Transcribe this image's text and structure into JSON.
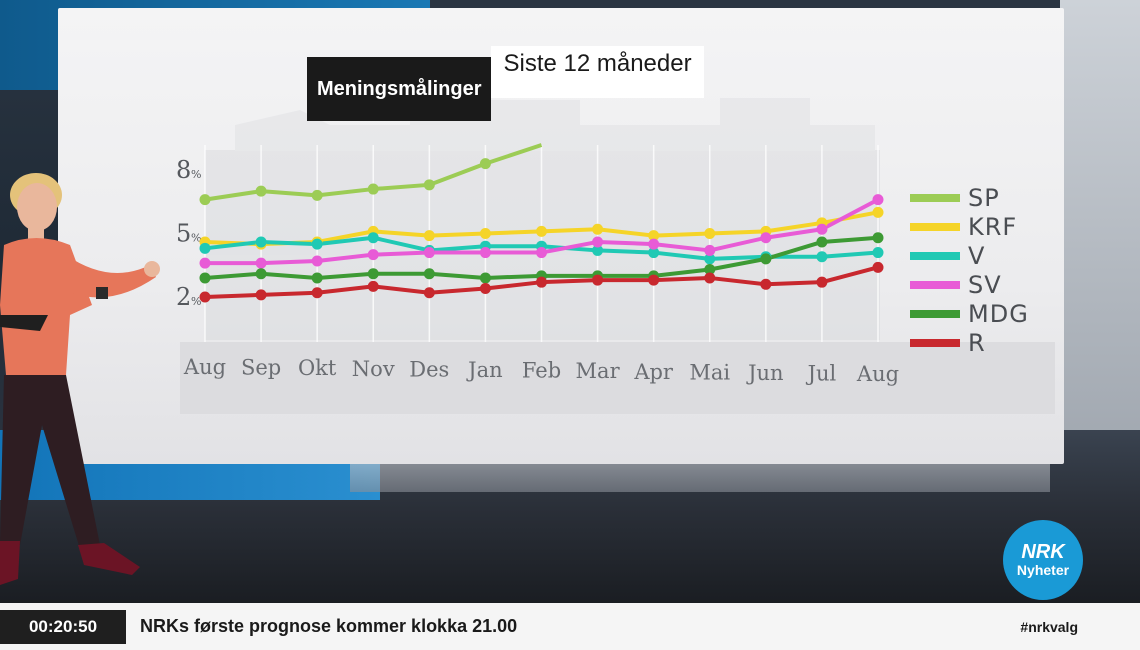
{
  "title": {
    "main": "Meningsmålinger",
    "sub": "Siste 12 måneder"
  },
  "chart_data": {
    "type": "line",
    "categories": [
      "Aug",
      "Sep",
      "Okt",
      "Nov",
      "Des",
      "Jan",
      "Feb",
      "Mar",
      "Apr",
      "Mai",
      "Jun",
      "Jul",
      "Aug"
    ],
    "y_ticks": [
      {
        "value": 8,
        "label": "8",
        "unit": "%"
      },
      {
        "value": 5,
        "label": "5",
        "unit": "%"
      },
      {
        "value": 2,
        "label": "2",
        "unit": "%"
      }
    ],
    "ylim": [
      1.5,
      8.5
    ],
    "series": [
      {
        "name": "SP",
        "color": "#9ccc55",
        "values": [
          6.6,
          7.0,
          6.8,
          7.1,
          7.3,
          8.3,
          10.0,
          null,
          null,
          null,
          null,
          null,
          null
        ]
      },
      {
        "name": "KRF",
        "color": "#f5d428",
        "values": [
          4.6,
          4.5,
          4.6,
          5.1,
          4.9,
          5.0,
          5.1,
          5.2,
          4.9,
          5.0,
          5.1,
          5.5,
          6.0
        ]
      },
      {
        "name": "V",
        "color": "#20c9b4",
        "values": [
          4.3,
          4.6,
          4.5,
          4.8,
          4.2,
          4.4,
          4.4,
          4.2,
          4.1,
          3.8,
          3.9,
          3.9,
          4.1
        ]
      },
      {
        "name": "SV",
        "color": "#e85bd6",
        "values": [
          3.6,
          3.6,
          3.7,
          4.0,
          4.1,
          4.1,
          4.1,
          4.6,
          4.5,
          4.2,
          4.8,
          5.2,
          6.6
        ]
      },
      {
        "name": "MDG",
        "color": "#3d9a34",
        "values": [
          2.9,
          3.1,
          2.9,
          3.1,
          3.1,
          2.9,
          3.0,
          3.0,
          3.0,
          3.3,
          3.8,
          4.6,
          4.8
        ]
      },
      {
        "name": "R",
        "color": "#c8282e",
        "values": [
          2.0,
          2.1,
          2.2,
          2.5,
          2.2,
          2.4,
          2.7,
          2.8,
          2.8,
          2.9,
          2.6,
          2.7,
          3.4
        ]
      }
    ],
    "legend_placement": "right"
  },
  "lower_third": {
    "clock": "00:20:50",
    "ticker": "NRKs første prognose kommer klokka 21.00",
    "hashtag": "#nrkvalg"
  },
  "logo": {
    "mark": "NRK",
    "label": "Nyheter",
    "color": "#1a9ad6"
  }
}
